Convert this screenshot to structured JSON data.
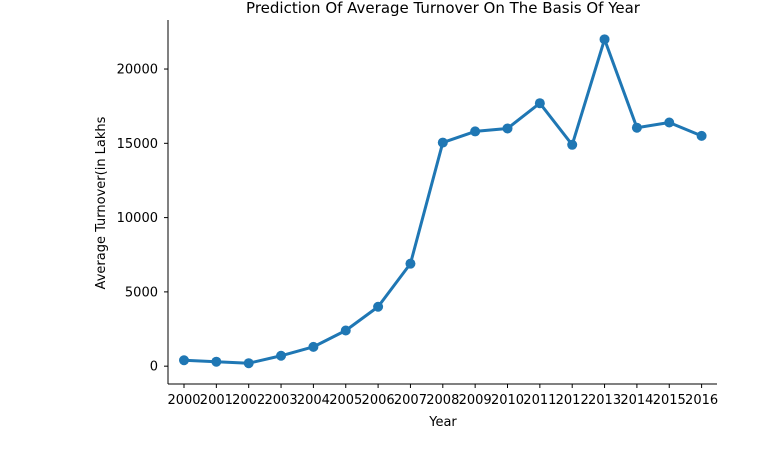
{
  "chart_data": {
    "type": "line",
    "title": "Prediction Of Average Turnover On The Basis Of Year",
    "xlabel": "Year",
    "ylabel": "Average Turnover(in Lakhs",
    "categories": [
      "2000",
      "2001",
      "2002",
      "2003",
      "2004",
      "2005",
      "2006",
      "2007",
      "2008",
      "2009",
      "2010",
      "2011",
      "2012",
      "2013",
      "2014",
      "2015",
      "2016"
    ],
    "series": [
      {
        "values": [
          400,
          300,
          200,
          700,
          1300,
          2400,
          4000,
          6900,
          15050,
          15800,
          16000,
          17700,
          14900,
          22000,
          16050,
          16400,
          15500
        ]
      }
    ],
    "yticks": [
      0,
      5000,
      10000,
      15000,
      20000
    ],
    "ylim": [
      -1200,
      23300
    ],
    "grid": false,
    "line_color": "#1f77b4"
  }
}
